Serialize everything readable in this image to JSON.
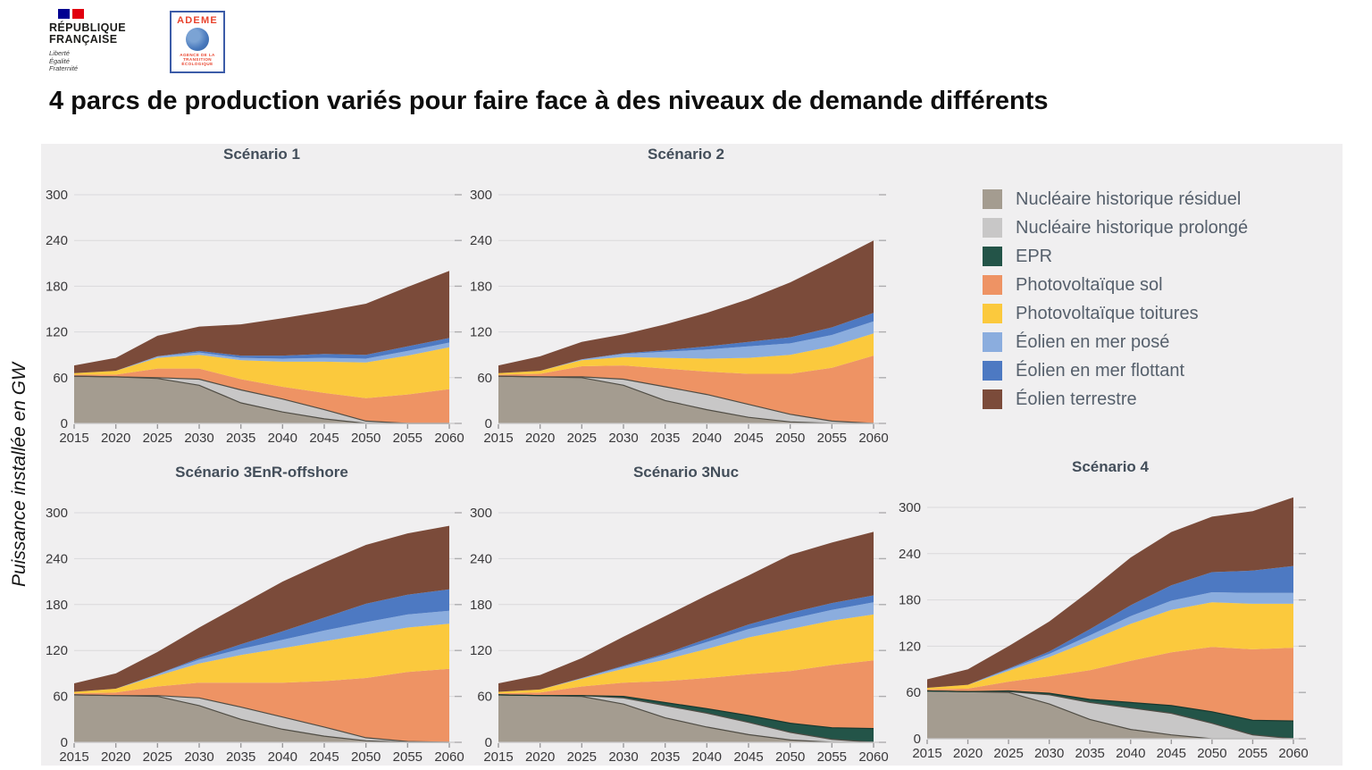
{
  "header": {
    "rf_logo": {
      "line1": "RÉPUBLIQUE",
      "line2": "FRANÇAISE",
      "motto": [
        "Liberté",
        "Égalité",
        "Fraternité"
      ]
    },
    "ademe_logo": {
      "name": "ADEME",
      "subtitle": [
        "AGENCE DE LA",
        "TRANSITION",
        "ÉCOLOGIQUE"
      ]
    }
  },
  "title": "4 parcs de production variés pour faire face à des niveaux de demande différents",
  "ylabel": "Puissance installée en GW",
  "legend": {
    "position": "top-right",
    "items": [
      {
        "key": "residuel",
        "label": "Nucléaire historique résiduel",
        "color": "#a49c90",
        "stroke": "#504d45"
      },
      {
        "key": "prolonge",
        "label": "Nucléaire historique prolongé",
        "color": "#c8c7c7",
        "stroke": "#504d45"
      },
      {
        "key": "epr",
        "label": "EPR",
        "color": "#235448",
        "stroke": "#16382f"
      },
      {
        "key": "pv_sol",
        "label": "Photovoltaïque sol",
        "color": "#ee9364",
        "stroke": null
      },
      {
        "key": "pv_toitures",
        "label": "Photovoltaïque toitures",
        "color": "#fbc93d",
        "stroke": null
      },
      {
        "key": "eolien_pose",
        "label": "Éolien en mer posé",
        "color": "#8badde",
        "stroke": null
      },
      {
        "key": "eolien_flottant",
        "label": "Éolien en mer flottant",
        "color": "#4d79c2",
        "stroke": null
      },
      {
        "key": "eolien_terrestre",
        "label": "Éolien terrestre",
        "color": "#7b4b3a",
        "stroke": null
      }
    ]
  },
  "chart_data": [
    {
      "type": "area",
      "stacked": true,
      "title": "Scénario 1",
      "x": [
        2015,
        2020,
        2025,
        2030,
        2035,
        2040,
        2045,
        2050,
        2055,
        2060
      ],
      "ylim": [
        0,
        300
      ],
      "y_ticks": [
        0,
        60,
        120,
        180,
        240,
        300
      ],
      "grid": true,
      "series": [
        {
          "key": "residuel",
          "name": "Nucléaire historique résiduel",
          "values": [
            62,
            61,
            59,
            50,
            27,
            15,
            6,
            0,
            0,
            0
          ]
        },
        {
          "key": "prolonge",
          "name": "Nucléaire historique prolongé",
          "values": [
            0,
            0,
            1,
            8,
            17,
            17,
            12,
            3,
            0,
            0
          ]
        },
        {
          "key": "epr",
          "name": "EPR",
          "values": [
            0,
            0,
            0,
            0,
            0,
            0,
            0,
            0,
            0,
            0
          ]
        },
        {
          "key": "pv_sol",
          "name": "Photovoltaïque sol",
          "values": [
            2,
            3,
            12,
            14,
            14,
            16,
            22,
            30,
            38,
            45
          ]
        },
        {
          "key": "pv_toitures",
          "name": "Photovoltaïque toitures",
          "values": [
            2,
            5,
            14,
            18,
            25,
            33,
            41,
            47,
            51,
            55
          ]
        },
        {
          "key": "eolien_pose",
          "name": "Éolien en mer posé",
          "values": [
            0,
            0,
            2,
            3,
            3,
            4,
            5,
            5,
            6,
            6
          ]
        },
        {
          "key": "eolien_flottant",
          "name": "Éolien en mer flottant",
          "values": [
            0,
            0,
            0,
            2,
            3,
            4,
            5,
            5,
            6,
            6
          ]
        },
        {
          "key": "eolien_terrestre",
          "name": "Éolien terrestre",
          "values": [
            10,
            17,
            27,
            32,
            41,
            49,
            56,
            67,
            78,
            88
          ]
        }
      ]
    },
    {
      "type": "area",
      "stacked": true,
      "title": "Scénario 2",
      "x": [
        2015,
        2020,
        2025,
        2030,
        2035,
        2040,
        2045,
        2050,
        2055,
        2060
      ],
      "ylim": [
        0,
        300
      ],
      "y_ticks": [
        0,
        60,
        120,
        180,
        240,
        300
      ],
      "grid": true,
      "series": [
        {
          "key": "residuel",
          "name": "Nucléaire historique résiduel",
          "values": [
            62,
            61,
            60,
            50,
            30,
            18,
            8,
            2,
            0,
            0
          ]
        },
        {
          "key": "prolonge",
          "name": "Nucléaire historique prolongé",
          "values": [
            0,
            0,
            1,
            8,
            18,
            20,
            17,
            10,
            3,
            0
          ]
        },
        {
          "key": "epr",
          "name": "EPR",
          "values": [
            0,
            0,
            0,
            0,
            0,
            0,
            0,
            0,
            0,
            0
          ]
        },
        {
          "key": "pv_sol",
          "name": "Photovoltaïque sol",
          "values": [
            2,
            4,
            14,
            18,
            24,
            30,
            40,
            53,
            70,
            89
          ]
        },
        {
          "key": "pv_toitures",
          "name": "Photovoltaïque toitures",
          "values": [
            2,
            4,
            8,
            11,
            14,
            17,
            21,
            25,
            28,
            29
          ]
        },
        {
          "key": "eolien_pose",
          "name": "Éolien en mer posé",
          "values": [
            0,
            0,
            1,
            4,
            8,
            12,
            15,
            15,
            15,
            16
          ]
        },
        {
          "key": "eolien_flottant",
          "name": "Éolien en mer flottant",
          "values": [
            0,
            0,
            0,
            1,
            2,
            4,
            6,
            8,
            10,
            11
          ]
        },
        {
          "key": "eolien_terrestre",
          "name": "Éolien terrestre",
          "values": [
            10,
            19,
            23,
            25,
            34,
            44,
            56,
            72,
            86,
            95
          ]
        }
      ]
    },
    {
      "type": "area",
      "stacked": true,
      "title": "Scénario 3EnR-offshore",
      "x": [
        2015,
        2020,
        2025,
        2030,
        2035,
        2040,
        2045,
        2050,
        2055,
        2060
      ],
      "ylim": [
        0,
        300
      ],
      "y_ticks": [
        0,
        60,
        120,
        180,
        240,
        300
      ],
      "grid": true,
      "series": [
        {
          "key": "residuel",
          "name": "Nucléaire historique résiduel",
          "values": [
            62,
            61,
            60,
            48,
            30,
            17,
            8,
            2,
            0,
            0
          ]
        },
        {
          "key": "prolonge",
          "name": "Nucléaire historique prolongé",
          "values": [
            0,
            0,
            1,
            10,
            16,
            16,
            12,
            4,
            1,
            0
          ]
        },
        {
          "key": "epr",
          "name": "EPR",
          "values": [
            0,
            0,
            0,
            0,
            0,
            0,
            0,
            0,
            0,
            0
          ]
        },
        {
          "key": "pv_sol",
          "name": "Photovoltaïque sol",
          "values": [
            2,
            4,
            12,
            20,
            32,
            45,
            60,
            78,
            91,
            96
          ]
        },
        {
          "key": "pv_toitures",
          "name": "Photovoltaïque toitures",
          "values": [
            2,
            5,
            14,
            25,
            36,
            45,
            52,
            57,
            58,
            59
          ]
        },
        {
          "key": "eolien_pose",
          "name": "Éolien en mer posé",
          "values": [
            0,
            0,
            2,
            5,
            8,
            11,
            14,
            16,
            17,
            17
          ]
        },
        {
          "key": "eolien_flottant",
          "name": "Éolien en mer flottant",
          "values": [
            0,
            0,
            0,
            2,
            6,
            11,
            17,
            24,
            26,
            28
          ]
        },
        {
          "key": "eolien_terrestre",
          "name": "Éolien terrestre",
          "values": [
            11,
            20,
            29,
            40,
            52,
            65,
            72,
            77,
            80,
            83
          ]
        }
      ]
    },
    {
      "type": "area",
      "stacked": true,
      "title": "Scénario 3Nuc",
      "x": [
        2015,
        2020,
        2025,
        2030,
        2035,
        2040,
        2045,
        2050,
        2055,
        2060
      ],
      "ylim": [
        0,
        300
      ],
      "y_ticks": [
        0,
        60,
        120,
        180,
        240,
        300
      ],
      "grid": true,
      "series": [
        {
          "key": "residuel",
          "name": "Nucléaire historique résiduel",
          "values": [
            62,
            61,
            60,
            50,
            32,
            20,
            10,
            3,
            0,
            0
          ]
        },
        {
          "key": "prolonge",
          "name": "Nucléaire historique prolongé",
          "values": [
            0,
            0,
            1,
            8,
            16,
            18,
            16,
            10,
            4,
            0
          ]
        },
        {
          "key": "epr",
          "name": "EPR",
          "values": [
            0,
            0,
            0,
            2,
            4,
            6,
            9,
            12,
            15,
            18
          ]
        },
        {
          "key": "pv_sol",
          "name": "Photovoltaïque sol",
          "values": [
            2,
            4,
            12,
            18,
            28,
            40,
            54,
            68,
            82,
            89
          ]
        },
        {
          "key": "pv_toitures",
          "name": "Photovoltaïque toitures",
          "values": [
            2,
            4,
            10,
            18,
            28,
            38,
            48,
            55,
            58,
            60
          ]
        },
        {
          "key": "eolien_pose",
          "name": "Éolien en mer posé",
          "values": [
            0,
            0,
            1,
            3,
            6,
            9,
            11,
            13,
            14,
            16
          ]
        },
        {
          "key": "eolien_flottant",
          "name": "Éolien en mer flottant",
          "values": [
            0,
            0,
            0,
            1,
            2,
            4,
            6,
            8,
            9,
            9
          ]
        },
        {
          "key": "eolien_terrestre",
          "name": "Éolien terrestre",
          "values": [
            11,
            19,
            26,
            38,
            49,
            57,
            64,
            76,
            79,
            83
          ]
        }
      ]
    },
    {
      "type": "area",
      "stacked": true,
      "title": "Scénario 4",
      "x": [
        2015,
        2020,
        2025,
        2030,
        2035,
        2040,
        2045,
        2050,
        2055,
        2060
      ],
      "ylim": [
        0,
        300
      ],
      "y_ticks": [
        0,
        60,
        120,
        180,
        240,
        300
      ],
      "grid": true,
      "series": [
        {
          "key": "residuel",
          "name": "Nucléaire historique résiduel",
          "values": [
            62,
            61,
            60,
            45,
            25,
            12,
            5,
            0,
            0,
            0
          ]
        },
        {
          "key": "prolonge",
          "name": "Nucléaire historique prolongé",
          "values": [
            0,
            0,
            1,
            12,
            22,
            28,
            28,
            20,
            5,
            0
          ]
        },
        {
          "key": "epr",
          "name": "EPR",
          "values": [
            0,
            0,
            1,
            2,
            4,
            7,
            10,
            15,
            19,
            23
          ]
        },
        {
          "key": "pv_sol",
          "name": "Photovoltaïque sol",
          "values": [
            2,
            4,
            12,
            22,
            38,
            54,
            69,
            84,
            92,
            95
          ]
        },
        {
          "key": "pv_toitures",
          "name": "Photovoltaïque toitures",
          "values": [
            2,
            5,
            14,
            25,
            38,
            48,
            55,
            58,
            59,
            57
          ]
        },
        {
          "key": "eolien_pose",
          "name": "Éolien en mer posé",
          "values": [
            0,
            0,
            2,
            4,
            7,
            10,
            12,
            13,
            14,
            14
          ]
        },
        {
          "key": "eolien_flottant",
          "name": "Éolien en mer flottant",
          "values": [
            0,
            0,
            1,
            3,
            8,
            14,
            20,
            26,
            29,
            35
          ]
        },
        {
          "key": "eolien_terrestre",
          "name": "Éolien terrestre",
          "values": [
            11,
            20,
            29,
            39,
            50,
            62,
            69,
            72,
            77,
            89
          ]
        }
      ]
    }
  ]
}
